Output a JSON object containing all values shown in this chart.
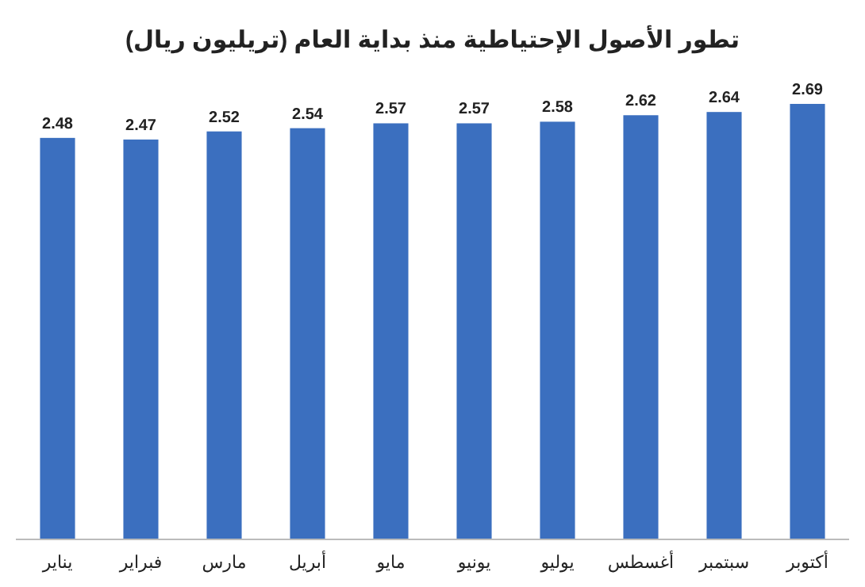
{
  "chart_data": {
    "type": "bar",
    "title": "تطور الأصول الإحتياطية منذ بداية العام (تريليون ريال)",
    "categories": [
      "يناير",
      "فبراير",
      "مارس",
      "أبريل",
      "مايو",
      "يونيو",
      "يوليو",
      "أغسطس",
      "سبتمبر",
      "أكتوبر"
    ],
    "values": [
      2.48,
      2.47,
      2.52,
      2.54,
      2.57,
      2.57,
      2.58,
      2.62,
      2.64,
      2.69
    ],
    "color": "#3b6fbf",
    "data_labels": true
  }
}
